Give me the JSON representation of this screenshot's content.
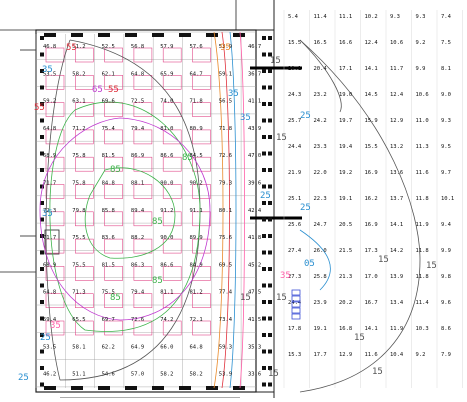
{
  "drawing": {
    "colors": {
      "wall": "#222222",
      "grid": "#9a9a9a",
      "fixture": "#e24a8a",
      "fixture_alt": "#6c7be0",
      "contour_25": "#2a8fd0",
      "contour_35": "#ff5fa8",
      "contour_55": "#e0303c",
      "contour_65": "#c03ad0",
      "contour_85": "#3db24a",
      "contour_95": "#e98a2a",
      "contour_outer": "#555555",
      "exit_blue": "#3c4fd6",
      "contour_label": "#29a8e0"
    },
    "left_grid_values": [
      [
        "46.8",
        "51.2",
        "52.5",
        "56.8",
        "57.9",
        "57.6",
        "53.9"
      ],
      [
        "53.5",
        "58.2",
        "62.1",
        "64.8",
        "65.9",
        "64.7",
        "59.1"
      ],
      [
        "59.2",
        "63.1",
        "69.6",
        "72.5",
        "74.0",
        "71.8",
        "56.5"
      ],
      [
        "64.8",
        "71.2",
        "75.4",
        "79.4",
        "81.0",
        "80.9",
        "71.8"
      ],
      [
        "68.9",
        "75.8",
        "81.5",
        "86.9",
        "86.6",
        "84.5",
        "72.6"
      ],
      [
        "71.7",
        "75.8",
        "84.8",
        "88.1",
        "90.0",
        "90.2",
        "79.3"
      ],
      [
        "72.3",
        "79.8",
        "85.8",
        "89.4",
        "91.2",
        "91.1",
        "80.1"
      ],
      [
        "71.7",
        "75.5",
        "83.6",
        "88.2",
        "90.0",
        "89.9",
        "75.6"
      ],
      [
        "68.9",
        "75.5",
        "81.5",
        "86.3",
        "86.6",
        "84.9",
        "69.5"
      ],
      [
        "64.8",
        "71.3",
        "75.5",
        "79.4",
        "81.1",
        "81.2",
        "77.4"
      ],
      [
        "59.4",
        "65.5",
        "69.7",
        "72.6",
        "74.2",
        "72.1",
        "73.4"
      ],
      [
        "53.5",
        "58.1",
        "62.2",
        "64.9",
        "66.0",
        "64.8",
        "59.3"
      ],
      [
        "46.2",
        "51.1",
        "54.6",
        "57.0",
        "58.2",
        "58.2",
        "53.9"
      ]
    ],
    "middle_col_values": [
      "46.7",
      "36.7",
      "41.1",
      "43.9",
      "47.0",
      "39.6",
      "42.4",
      "41.8",
      "45.2",
      "47.5",
      "41.5",
      "35.3",
      "33.6"
    ],
    "right_grid_values": [
      [
        "5.4",
        "11.4",
        "11.1",
        "10.2",
        "9.3",
        "9.3",
        "7.4"
      ],
      [
        "15.5",
        "16.5",
        "16.6",
        "12.4",
        "10.6",
        "9.2",
        "7.5"
      ],
      [
        "20.1",
        "20.4",
        "17.1",
        "14.1",
        "11.7",
        "9.9",
        "8.1"
      ],
      [
        "24.3",
        "23.2",
        "19.0",
        "14.5",
        "12.4",
        "10.6",
        "9.0"
      ],
      [
        "25.7",
        "24.2",
        "19.7",
        "15.9",
        "12.9",
        "11.0",
        "9.3"
      ],
      [
        "24.4",
        "23.3",
        "19.4",
        "15.5",
        "13.2",
        "11.3",
        "9.5"
      ],
      [
        "21.9",
        "22.0",
        "19.2",
        "16.9",
        "13.6",
        "11.6",
        "9.7"
      ],
      [
        "25.1",
        "22.3",
        "19.1",
        "16.2",
        "13.7",
        "11.8",
        "10.1"
      ],
      [
        "25.6",
        "24.7",
        "20.5",
        "16.9",
        "14.1",
        "11.9",
        "9.4"
      ],
      [
        "27.4",
        "26.0",
        "21.5",
        "17.3",
        "14.2",
        "11.8",
        "9.9"
      ],
      [
        "27.3",
        "25.8",
        "21.3",
        "17.0",
        "13.9",
        "11.8",
        "9.8"
      ],
      [
        "24.4",
        "23.9",
        "20.2",
        "16.7",
        "13.4",
        "11.4",
        "9.6"
      ],
      [
        "17.8",
        "19.1",
        "16.8",
        "14.1",
        "11.9",
        "10.3",
        "8.6"
      ],
      [
        "15.3",
        "17.7",
        "12.9",
        "11.6",
        "10.4",
        "9.2",
        "7.9"
      ]
    ],
    "contour_labels": [
      {
        "text": "55",
        "color": "contour_55"
      },
      {
        "text": "55",
        "color": "contour_55"
      },
      {
        "text": "85",
        "color": "contour_85"
      },
      {
        "text": "85",
        "color": "contour_85"
      },
      {
        "text": "95",
        "color": "contour_95"
      },
      {
        "text": "35",
        "color": "contour_25"
      },
      {
        "text": "35",
        "color": "contour_25"
      },
      {
        "text": "35",
        "color": "contour_25"
      },
      {
        "text": "35",
        "color": "contour_25"
      },
      {
        "text": "25",
        "color": "contour_25"
      },
      {
        "text": "25",
        "color": "contour_25"
      },
      {
        "text": "25",
        "color": "contour_25"
      },
      {
        "text": "25",
        "color": "contour_25"
      },
      {
        "text": "15",
        "color": "contour_outer"
      },
      {
        "text": "15",
        "color": "contour_outer"
      },
      {
        "text": "15",
        "color": "contour_outer"
      },
      {
        "text": "15",
        "color": "contour_outer"
      },
      {
        "text": "15",
        "color": "contour_outer"
      },
      {
        "text": "15",
        "color": "contour_outer"
      },
      {
        "text": "15",
        "color": "contour_outer"
      },
      {
        "text": "35",
        "color": "contour_35"
      },
      {
        "text": "65",
        "color": "contour_65"
      },
      {
        "text": "85",
        "color": "contour_85"
      },
      {
        "text": "85",
        "color": "contour_85"
      },
      {
        "text": "35",
        "color": "contour_35"
      },
      {
        "text": "05",
        "color": "contour_25"
      },
      {
        "text": "15",
        "color": "contour_outer"
      },
      {
        "text": "25",
        "color": "contour_25"
      },
      {
        "text": "15",
        "color": "contour_outer"
      },
      {
        "text": "55",
        "color": "contour_55"
      },
      {
        "text": "85",
        "color": "contour_85"
      }
    ]
  }
}
